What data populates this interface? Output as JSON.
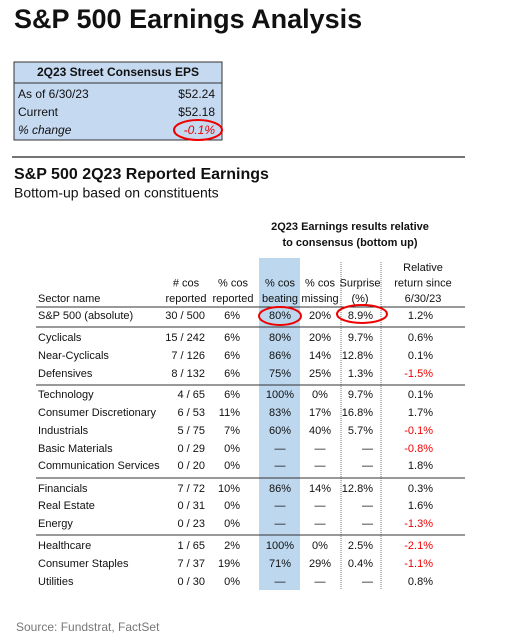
{
  "header": {
    "title": "S&P 500 Earnings Analysis"
  },
  "eps_box": {
    "title": "2Q23 Street Consensus EPS",
    "rows": [
      [
        "As of 6/30/23",
        "$52.24"
      ],
      [
        "Current",
        "$52.18"
      ],
      [
        "% change",
        "-0.1%"
      ]
    ]
  },
  "section": {
    "title": "S&P 500 2Q23 Reported Earnings",
    "subtitle": "Bottom-up based on constituents"
  },
  "table": {
    "group_header": [
      "2Q23 Earnings results relative",
      "to consensus (bottom up)"
    ],
    "columns": [
      [
        "Sector name"
      ],
      [
        "# cos",
        "reported"
      ],
      [
        "% cos",
        "reported"
      ],
      [
        "% cos",
        "beating"
      ],
      [
        "% cos",
        "missing"
      ],
      [
        "Surprise",
        "(%)"
      ],
      [
        "Relative",
        "return since",
        "6/30/23"
      ]
    ],
    "rows": [
      [
        "S&P 500 (absolute)",
        "30 / 500",
        "6%",
        "80%",
        "20%",
        "8.9%",
        "1.2%"
      ],
      [
        "Cyclicals",
        "15 / 242",
        "6%",
        "80%",
        "20%",
        "9.7%",
        "0.6%"
      ],
      [
        "Near-Cyclicals",
        "7 / 126",
        "6%",
        "86%",
        "14%",
        "12.8%",
        "0.1%"
      ],
      [
        "Defensives",
        "8 / 132",
        "6%",
        "75%",
        "25%",
        "1.3%",
        "-1.5%"
      ],
      [
        "Technology",
        "4 / 65",
        "6%",
        "100%",
        "0%",
        "9.7%",
        "0.1%"
      ],
      [
        "Consumer Discretionary",
        "6 / 53",
        "11%",
        "83%",
        "17%",
        "16.8%",
        "1.7%"
      ],
      [
        "Industrials",
        "5 / 75",
        "7%",
        "60%",
        "40%",
        "5.7%",
        "-0.1%"
      ],
      [
        "Basic Materials",
        "0 / 29",
        "0%",
        "—",
        "—",
        "—",
        "-0.8%"
      ],
      [
        "Communication Services",
        "0 / 20",
        "0%",
        "—",
        "—",
        "—",
        "1.8%"
      ],
      [
        "Financials",
        "7 / 72",
        "10%",
        "86%",
        "14%",
        "12.8%",
        "0.3%"
      ],
      [
        "Real Estate",
        "0 / 31",
        "0%",
        "—",
        "—",
        "—",
        "1.6%"
      ],
      [
        "Energy",
        "0 / 23",
        "0%",
        "—",
        "—",
        "—",
        "-1.3%"
      ],
      [
        "Healthcare",
        "1 / 65",
        "2%",
        "100%",
        "0%",
        "2.5%",
        "-2.1%"
      ],
      [
        "Consumer Staples",
        "7 / 37",
        "19%",
        "71%",
        "29%",
        "0.4%",
        "-1.1%"
      ],
      [
        "Utilities",
        "0 / 30",
        "0%",
        "—",
        "—",
        "—",
        "0.8%"
      ]
    ]
  },
  "footer": {
    "source": "Source: Fundstrat, FactSet"
  }
}
